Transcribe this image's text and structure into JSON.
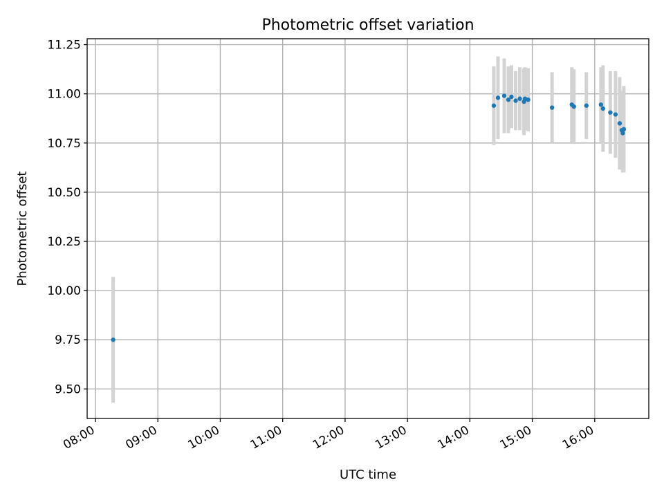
{
  "chart_data": {
    "type": "scatter",
    "title": "Photometric offset variation",
    "xlabel": "UTC time",
    "ylabel": "Photometric offset",
    "x_axis_type": "time",
    "xlim": [
      "07:52",
      "16:52"
    ],
    "ylim": [
      9.35,
      11.28
    ],
    "x_ticks": [
      "08:00",
      "09:00",
      "10:00",
      "11:00",
      "12:00",
      "13:00",
      "14:00",
      "15:00",
      "16:00"
    ],
    "y_ticks": [
      "9.50",
      "9.75",
      "10.00",
      "10.25",
      "10.50",
      "10.75",
      "11.00",
      "11.25"
    ],
    "grid": true,
    "legend": "none",
    "colors": {
      "points": "#1f77b4",
      "error_bars": "#d3d3d3"
    },
    "series": [
      {
        "x": [
          "08:17",
          "14:23",
          "14:27",
          "14:33",
          "14:37",
          "14:40",
          "14:44",
          "14:48",
          "14:52",
          "14:53",
          "14:56",
          "15:19",
          "15:38",
          "15:40",
          "15:52",
          "16:06",
          "16:08",
          "16:15",
          "16:20",
          "16:24",
          "16:26",
          "16:27",
          "16:28"
        ],
        "y": [
          9.75,
          10.94,
          10.98,
          10.99,
          10.97,
          10.985,
          10.965,
          10.975,
          10.96,
          10.975,
          10.97,
          10.93,
          10.945,
          10.935,
          10.94,
          10.945,
          10.925,
          10.905,
          10.895,
          10.85,
          10.815,
          10.8,
          10.82
        ],
        "yerr": [
          0.32,
          0.2,
          0.21,
          0.19,
          0.17,
          0.16,
          0.15,
          0.16,
          0.17,
          0.16,
          0.16,
          0.18,
          0.19,
          0.19,
          0.17,
          0.19,
          0.22,
          0.21,
          0.22,
          0.235,
          0.2,
          0.2,
          0.22
        ]
      }
    ]
  }
}
